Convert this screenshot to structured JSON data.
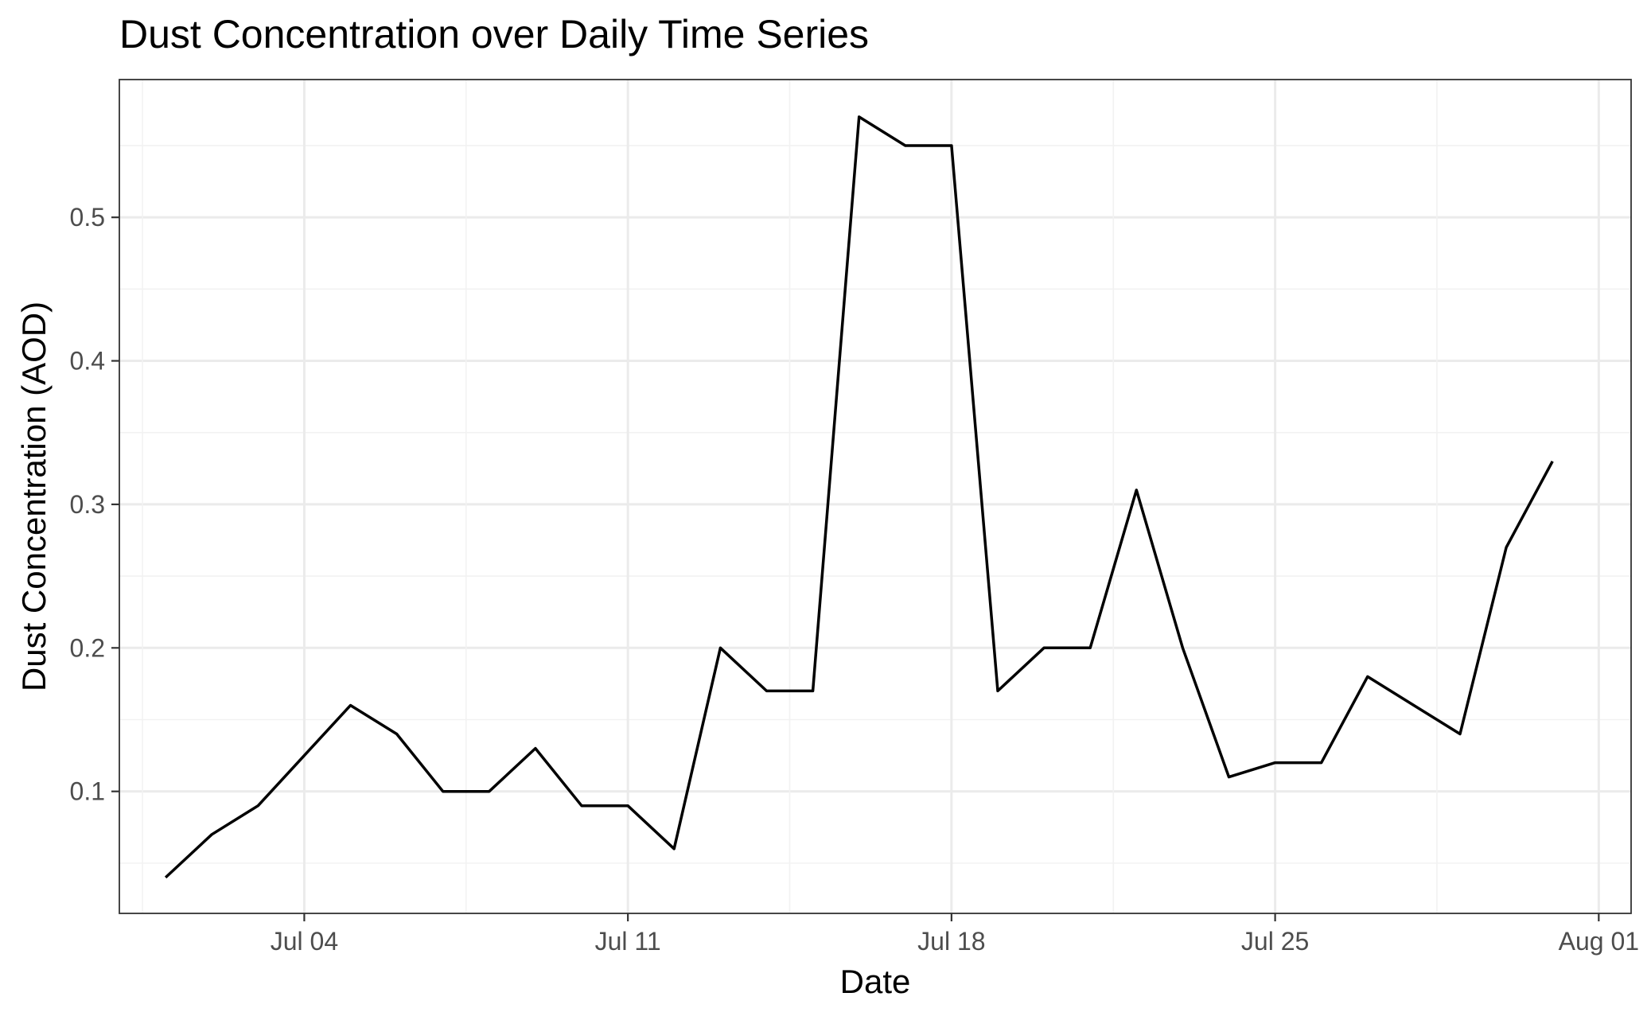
{
  "chart_data": {
    "type": "line",
    "title": "Dust Concentration over Daily Time Series",
    "xlabel": "Date",
    "ylabel": "Dust Concentration (AOD)",
    "x_ticks": [
      {
        "date": "2023-07-04",
        "label": "Jul 04"
      },
      {
        "date": "2023-07-11",
        "label": "Jul 11"
      },
      {
        "date": "2023-07-18",
        "label": "Jul 18"
      },
      {
        "date": "2023-07-25",
        "label": "Jul 25"
      },
      {
        "date": "2023-08-01",
        "label": "Aug 01"
      }
    ],
    "y_ticks": [
      0.1,
      0.2,
      0.3,
      0.4,
      0.5
    ],
    "xlim": [
      "2023-06-30",
      "2023-08-01"
    ],
    "ylim": [
      0.015,
      0.596
    ],
    "grid": true,
    "series": [
      {
        "x": [
          "2023-07-01",
          "2023-07-02",
          "2023-07-03",
          "2023-07-04",
          "2023-07-05",
          "2023-07-06",
          "2023-07-07",
          "2023-07-08",
          "2023-07-09",
          "2023-07-10",
          "2023-07-11",
          "2023-07-12",
          "2023-07-13",
          "2023-07-14",
          "2023-07-15",
          "2023-07-16",
          "2023-07-17",
          "2023-07-18",
          "2023-07-19",
          "2023-07-20",
          "2023-07-21",
          "2023-07-22",
          "2023-07-23",
          "2023-07-24",
          "2023-07-25",
          "2023-07-26",
          "2023-07-27",
          "2023-07-28",
          "2023-07-29",
          "2023-07-30",
          "2023-07-31"
        ],
        "values": [
          0.04,
          0.07,
          0.09,
          0.125,
          0.16,
          0.14,
          0.1,
          0.1,
          0.13,
          0.09,
          0.09,
          0.06,
          0.2,
          0.17,
          0.17,
          0.57,
          0.55,
          0.55,
          0.17,
          0.2,
          0.2,
          0.31,
          0.2,
          0.11,
          0.12,
          0.12,
          0.18,
          0.16,
          0.14,
          0.27,
          0.33
        ],
        "color": "#000000"
      }
    ]
  }
}
